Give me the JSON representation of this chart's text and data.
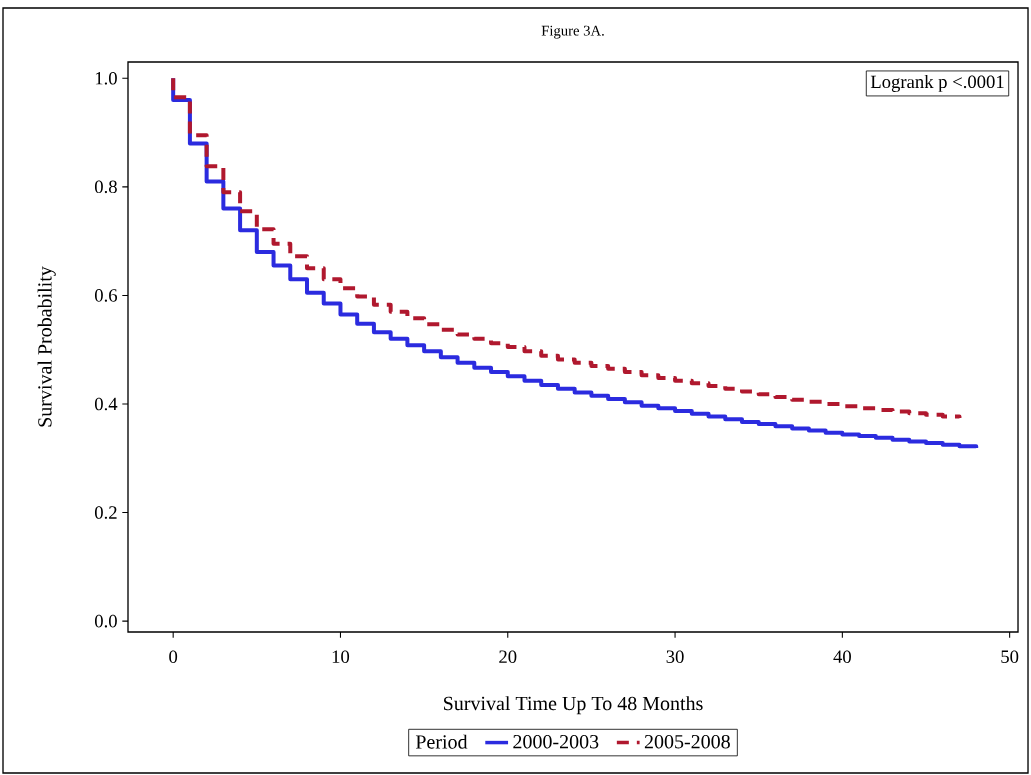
{
  "chart_data": {
    "type": "step",
    "title": "Figure 3A.",
    "xlabel": "Survival Time Up To 48 Months",
    "ylabel": "Survival Probability",
    "legend_title": "Period",
    "legend": "bottom",
    "annotations": [
      "Logrank p <.0001"
    ],
    "xlim": [
      -2.7,
      50.5
    ],
    "ylim": [
      -0.02,
      1.03
    ],
    "xticks": [
      0,
      10,
      20,
      30,
      40,
      50
    ],
    "yticks": [
      {
        "value": 0,
        "label": "0.0"
      },
      {
        "value": 0.2,
        "label": "0.2"
      },
      {
        "value": 0.4,
        "label": "0.4"
      },
      {
        "value": 0.6,
        "label": "0.6"
      },
      {
        "value": 0.8,
        "label": "0.8"
      },
      {
        "value": 1,
        "label": "1.0"
      }
    ],
    "series": [
      {
        "name": "2000-2003",
        "color": "#2b2bdf",
        "line_style": "solid",
        "x": [
          0,
          0,
          1,
          2,
          3,
          4,
          5,
          6,
          7,
          8,
          9,
          10,
          11,
          12,
          13,
          14,
          15,
          16,
          17,
          18,
          19,
          20,
          21,
          22,
          23,
          24,
          25,
          26,
          27,
          28,
          29,
          30,
          31,
          32,
          33,
          34,
          35,
          36,
          37,
          38,
          39,
          40,
          41,
          42,
          43,
          44,
          45,
          46,
          47,
          48
        ],
        "values": [
          1.0,
          0.96,
          0.88,
          0.81,
          0.76,
          0.72,
          0.68,
          0.655,
          0.63,
          0.605,
          0.585,
          0.565,
          0.548,
          0.532,
          0.52,
          0.508,
          0.497,
          0.486,
          0.476,
          0.467,
          0.459,
          0.451,
          0.443,
          0.435,
          0.428,
          0.421,
          0.415,
          0.409,
          0.403,
          0.397,
          0.392,
          0.387,
          0.382,
          0.377,
          0.372,
          0.367,
          0.363,
          0.359,
          0.355,
          0.351,
          0.347,
          0.344,
          0.341,
          0.338,
          0.334,
          0.331,
          0.328,
          0.325,
          0.322,
          0.319
        ]
      },
      {
        "name": "2005-2008",
        "color": "#b0182e",
        "line_style": "dashed",
        "x": [
          0,
          0,
          1,
          2,
          3,
          4,
          5,
          6,
          7,
          8,
          9,
          10,
          11,
          12,
          13,
          14,
          15,
          16,
          17,
          18,
          19,
          20,
          21,
          22,
          23,
          24,
          25,
          26,
          27,
          28,
          29,
          30,
          31,
          32,
          33,
          34,
          35,
          36,
          37,
          38,
          39,
          40,
          41,
          42,
          43,
          44,
          45,
          46,
          47
        ],
        "values": [
          1.0,
          0.965,
          0.895,
          0.838,
          0.79,
          0.755,
          0.722,
          0.695,
          0.672,
          0.65,
          0.63,
          0.613,
          0.598,
          0.583,
          0.57,
          0.558,
          0.547,
          0.537,
          0.528,
          0.52,
          0.512,
          0.505,
          0.497,
          0.489,
          0.482,
          0.476,
          0.47,
          0.465,
          0.459,
          0.453,
          0.448,
          0.443,
          0.438,
          0.433,
          0.428,
          0.423,
          0.418,
          0.413,
          0.408,
          0.404,
          0.4,
          0.396,
          0.392,
          0.389,
          0.386,
          0.383,
          0.38,
          0.377,
          0.374
        ]
      }
    ]
  }
}
